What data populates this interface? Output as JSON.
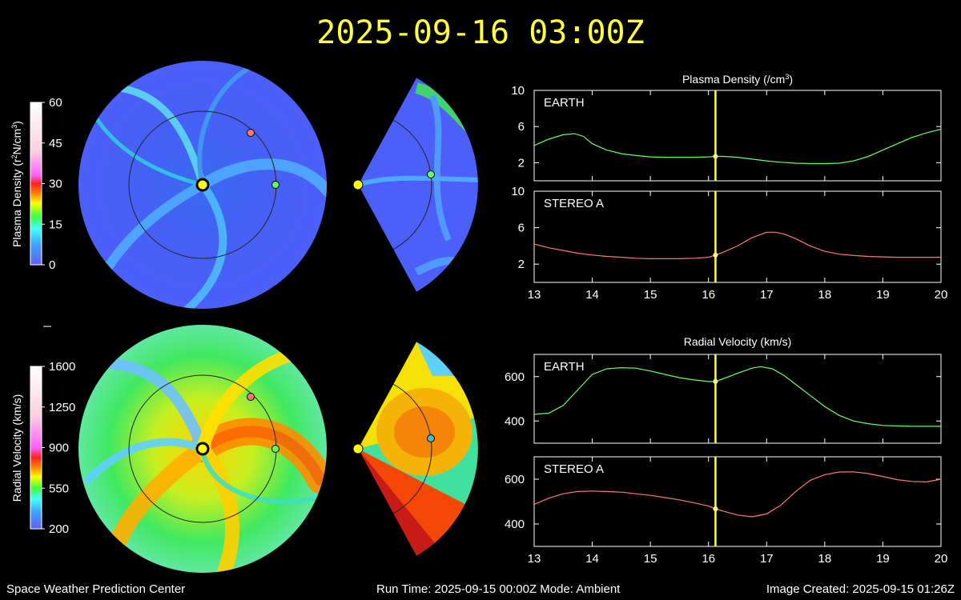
{
  "title": "2025-09-16 03:00Z",
  "footer": {
    "org": "Space Weather Prediction Center",
    "run_time": "Run Time: 2025-09-15 00:00Z  Mode: Ambient",
    "image_created": "Image Created: 2025-09-15 01:26Z"
  },
  "colors": {
    "earth": "#66ff66",
    "stereo_a": "#ff7777",
    "cursor": "#ffff40",
    "sun": "#ffff00"
  },
  "density_colorbar": {
    "label_pre": "Plasma Density (r",
    "label_sup": "2",
    "label_post": "N/cm",
    "label_sup2": "3",
    "label_end": ")",
    "ticks": [
      "60",
      "45",
      "30",
      "15",
      "0"
    ],
    "min": 0,
    "max": 60
  },
  "velocity_colorbar": {
    "label": "Radial Velocity (km/s)",
    "ticks": [
      "1600",
      "1250",
      "900",
      "550",
      "200"
    ],
    "min": 200,
    "max": 1600
  },
  "chart_data": [
    {
      "type": "line",
      "title_pre": "Plasma Density (/cm",
      "title_sup": "3",
      "title_post": ")",
      "x_ticks": [
        "13",
        "14",
        "15",
        "16",
        "17",
        "18",
        "19",
        "20"
      ],
      "xlim": [
        13,
        20
      ],
      "cursor_x": 16.12,
      "panels": [
        {
          "name": "EARTH",
          "ylim": [
            0,
            10
          ],
          "yticks": [
            "10",
            "6",
            "2"
          ],
          "ytick_values": [
            10,
            6,
            2
          ],
          "color": "#66ff66",
          "x": [
            13,
            13.25,
            13.5,
            13.7,
            13.85,
            14,
            14.25,
            14.5,
            14.75,
            15,
            15.25,
            15.5,
            15.75,
            16,
            16.12,
            16.25,
            16.5,
            16.75,
            17,
            17.25,
            17.5,
            17.75,
            18,
            18.25,
            18.5,
            18.75,
            19,
            19.25,
            19.5,
            19.75,
            20
          ],
          "y": [
            3.9,
            4.6,
            5.1,
            5.2,
            4.9,
            4.1,
            3.4,
            3.0,
            2.8,
            2.65,
            2.6,
            2.6,
            2.6,
            2.65,
            2.7,
            2.7,
            2.6,
            2.4,
            2.2,
            2.05,
            1.95,
            1.9,
            1.9,
            1.95,
            2.2,
            2.7,
            3.4,
            4.1,
            4.8,
            5.3,
            5.7
          ]
        },
        {
          "name": "STEREO A",
          "ylim": [
            0,
            10
          ],
          "yticks": [
            "10",
            "6",
            "2"
          ],
          "ytick_values": [
            10,
            6,
            2
          ],
          "color": "#ff7777",
          "x": [
            13,
            13.25,
            13.5,
            13.75,
            14,
            14.25,
            14.5,
            14.75,
            15,
            15.25,
            15.5,
            15.75,
            16,
            16.12,
            16.25,
            16.5,
            16.75,
            17,
            17.15,
            17.3,
            17.5,
            17.75,
            18,
            18.25,
            18.5,
            18.75,
            19,
            19.25,
            19.5,
            19.75,
            20
          ],
          "y": [
            4.2,
            3.8,
            3.5,
            3.2,
            3.0,
            2.85,
            2.75,
            2.65,
            2.6,
            2.6,
            2.6,
            2.65,
            2.75,
            3.0,
            3.3,
            4.0,
            4.9,
            5.5,
            5.5,
            5.3,
            4.8,
            4.0,
            3.4,
            3.1,
            2.95,
            2.85,
            2.8,
            2.75,
            2.75,
            2.75,
            2.75
          ]
        }
      ]
    },
    {
      "type": "line",
      "title": "Radial Velocity (km/s)",
      "x_ticks": [
        "13",
        "14",
        "15",
        "16",
        "17",
        "18",
        "19",
        "20"
      ],
      "xlim": [
        13,
        20
      ],
      "cursor_x": 16.12,
      "panels": [
        {
          "name": "EARTH",
          "ylim": [
            300,
            700
          ],
          "yticks": [
            "600",
            "400"
          ],
          "ytick_values": [
            600,
            400
          ],
          "color": "#66ff66",
          "x": [
            13,
            13.25,
            13.5,
            13.75,
            14,
            14.25,
            14.5,
            14.75,
            15,
            15.25,
            15.5,
            15.75,
            16,
            16.12,
            16.25,
            16.5,
            16.75,
            16.9,
            17.1,
            17.3,
            17.5,
            17.75,
            18,
            18.25,
            18.5,
            18.75,
            19,
            19.25,
            19.5,
            19.75,
            20
          ],
          "y": [
            430,
            435,
            470,
            540,
            610,
            635,
            640,
            638,
            625,
            610,
            595,
            585,
            578,
            578,
            590,
            615,
            638,
            645,
            635,
            605,
            565,
            515,
            465,
            425,
            400,
            388,
            380,
            378,
            376,
            376,
            376
          ]
        },
        {
          "name": "STEREO A",
          "ylim": [
            300,
            700
          ],
          "yticks": [
            "600",
            "400"
          ],
          "ytick_values": [
            600,
            400
          ],
          "color": "#ff7777",
          "x": [
            13,
            13.25,
            13.5,
            13.75,
            14,
            14.25,
            14.5,
            14.75,
            15,
            15.25,
            15.5,
            15.75,
            16,
            16.12,
            16.25,
            16.5,
            16.75,
            17,
            17.25,
            17.5,
            17.75,
            18,
            18.25,
            18.5,
            18.75,
            19,
            19.25,
            19.5,
            19.75,
            20
          ],
          "y": [
            488,
            515,
            535,
            545,
            547,
            545,
            542,
            535,
            528,
            518,
            508,
            495,
            480,
            468,
            458,
            440,
            432,
            445,
            485,
            545,
            595,
            620,
            632,
            633,
            625,
            612,
            598,
            590,
            588,
            600
          ]
        }
      ]
    }
  ]
}
